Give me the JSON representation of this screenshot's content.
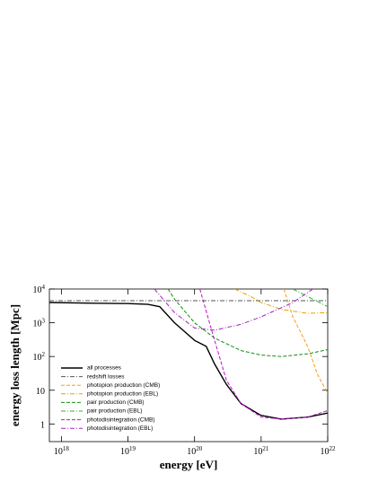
{
  "chart_data": {
    "type": "line",
    "xlabel": "energy [eV]",
    "ylabel": "energy loss length [Mpc]",
    "xscale": "log",
    "yscale": "log",
    "xlim": [
      6.6e+17,
      1e+22
    ],
    "ylim": [
      0.3,
      10000
    ],
    "xticks": [
      {
        "value": 1e+18,
        "label": "10^18"
      },
      {
        "value": 1e+19,
        "label": "10^19"
      },
      {
        "value": 1e+20,
        "label": "10^20"
      },
      {
        "value": 1e+21,
        "label": "10^21"
      },
      {
        "value": 1e+22,
        "label": "10^22"
      }
    ],
    "yticks": [
      1,
      10,
      {
        "value": 100,
        "label": "10^2"
      },
      {
        "value": 1000,
        "label": "10^3"
      },
      {
        "value": 10000,
        "label": "10^4"
      }
    ],
    "series": [
      {
        "name": "all processes",
        "color": "#000000",
        "linestyle": "solid",
        "x": [
          6.6e+17,
          3e+18,
          1e+19,
          2e+19,
          3e+19,
          5e+19,
          1e+20,
          1.5e+20,
          2e+20,
          3e+20,
          5e+20,
          1e+21,
          2e+21,
          5e+21,
          1e+22
        ],
        "values": [
          4000,
          3800,
          3700,
          3500,
          3000,
          1000,
          300,
          200,
          60,
          15,
          4,
          1.8,
          1.4,
          1.6,
          2.1
        ]
      },
      {
        "name": "redshift losses",
        "color": "#555555",
        "linestyle": "dashdot",
        "x": [
          6.6e+17,
          1e+22
        ],
        "values": [
          4500,
          4500
        ]
      },
      {
        "name": "photopion production (CMB)",
        "color": "#f0a020",
        "linestyle": "dashed",
        "x": [
          2.2e+21,
          3e+21,
          5e+21,
          7e+21,
          1e+22
        ],
        "values": [
          10000,
          1500,
          200,
          30,
          8
        ]
      },
      {
        "name": "photopion production (EBL)",
        "color": "#e8a000",
        "linestyle": "dashdot",
        "x": [
          4e+20,
          7e+20,
          1e+21,
          2e+21,
          5e+21,
          1e+22
        ],
        "values": [
          10000,
          6000,
          4000,
          2500,
          1900,
          2000
        ]
      },
      {
        "name": "pair production (CMB)",
        "color": "#109010",
        "linestyle": "dashed",
        "x": [
          4e+19,
          5e+19,
          1e+20,
          2e+20,
          5e+20,
          1e+21,
          2e+21,
          5e+21,
          1e+22
        ],
        "values": [
          10000,
          5000,
          1000,
          350,
          150,
          110,
          100,
          120,
          160
        ]
      },
      {
        "name": "pair production (EBL)",
        "color": "#30b030",
        "linestyle": "dashdot",
        "x": [
          3e+21,
          1e+22
        ],
        "values": [
          10000,
          3000
        ]
      },
      {
        "name": "photodisintegration (CMB)",
        "color": "#c010d0",
        "linestyle": "dashed",
        "x": [
          1.2e+20,
          2e+20,
          3e+20,
          5e+20,
          1e+21,
          2e+21,
          5e+21,
          1e+22
        ],
        "values": [
          10000,
          300,
          20,
          4,
          1.6,
          1.4,
          1.6,
          2.5
        ]
      },
      {
        "name": "photodisintegration (EBL)",
        "color": "#a020c0",
        "linestyle": "dashdot",
        "x": [
          2.5e+19,
          5e+19,
          1e+20,
          2e+20,
          5e+20,
          1e+21,
          3e+21,
          6e+21
        ],
        "values": [
          10000,
          2000,
          700,
          600,
          900,
          1500,
          4000,
          10000
        ]
      }
    ]
  }
}
